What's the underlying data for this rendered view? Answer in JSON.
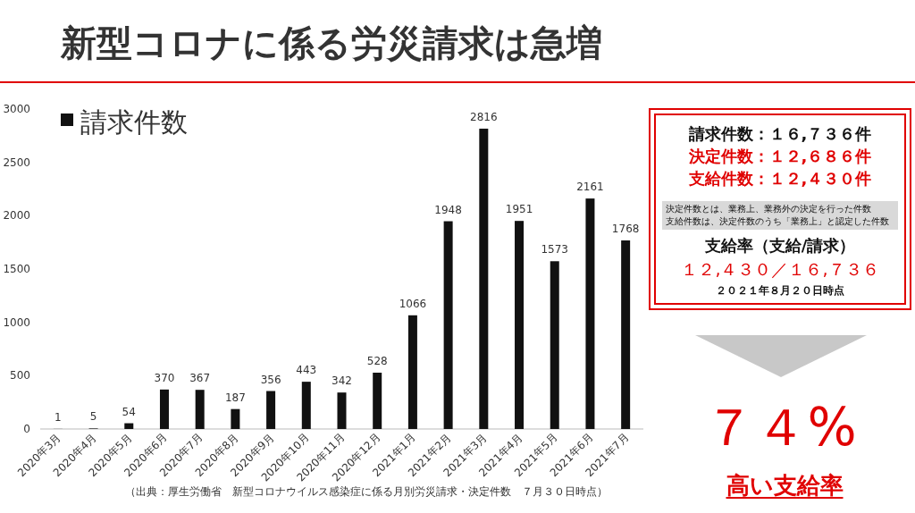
{
  "chart_data": [
    {
      "type": "bar",
      "title": "新型コロナに係る労災請求は急増",
      "categories": [
        "2020年3月",
        "2020年4月",
        "2020年5月",
        "2020年6月",
        "2020年7月",
        "2020年8月",
        "2020年9月",
        "2020年10月",
        "2020年11月",
        "2020年12月",
        "2021年1月",
        "2021年2月",
        "2021年3月",
        "2021年4月",
        "2021年5月",
        "2021年6月",
        "2021年7月"
      ],
      "series": [
        {
          "name": "請求件数",
          "color": "#111111",
          "values": [
            1,
            5,
            54,
            370,
            367,
            187,
            356,
            443,
            342,
            528,
            1066,
            1948,
            2816,
            1951,
            1573,
            2161,
            1768
          ]
        }
      ],
      "ylim": [
        0,
        3000
      ],
      "yticks": [
        0,
        500,
        1000,
        1500,
        2000,
        2500,
        3000
      ],
      "grid": false,
      "legend": "top left",
      "data_labels": true,
      "annotations": [
        "（出典：厚生労働省　新型コロナウイルス感染症に係る月別労災請求・決定件数　７月３０日時点）"
      ]
    },
    {
      "type": "other",
      "annotations": [
        "請求件数：１６,７３６件",
        "決定件数：１２,６８６件",
        "支給件数：１２,４３０件",
        "決定件数とは、業務上、業務外の決定を行った件数",
        "支給件数は、決定件数のうち「業務上」と認定した件数",
        "支給率（支給/請求）",
        "１２,４３０／１６,７３６",
        "２０２１年８月２０日時点",
        "７４%",
        "高い支給率"
      ]
    }
  ]
}
